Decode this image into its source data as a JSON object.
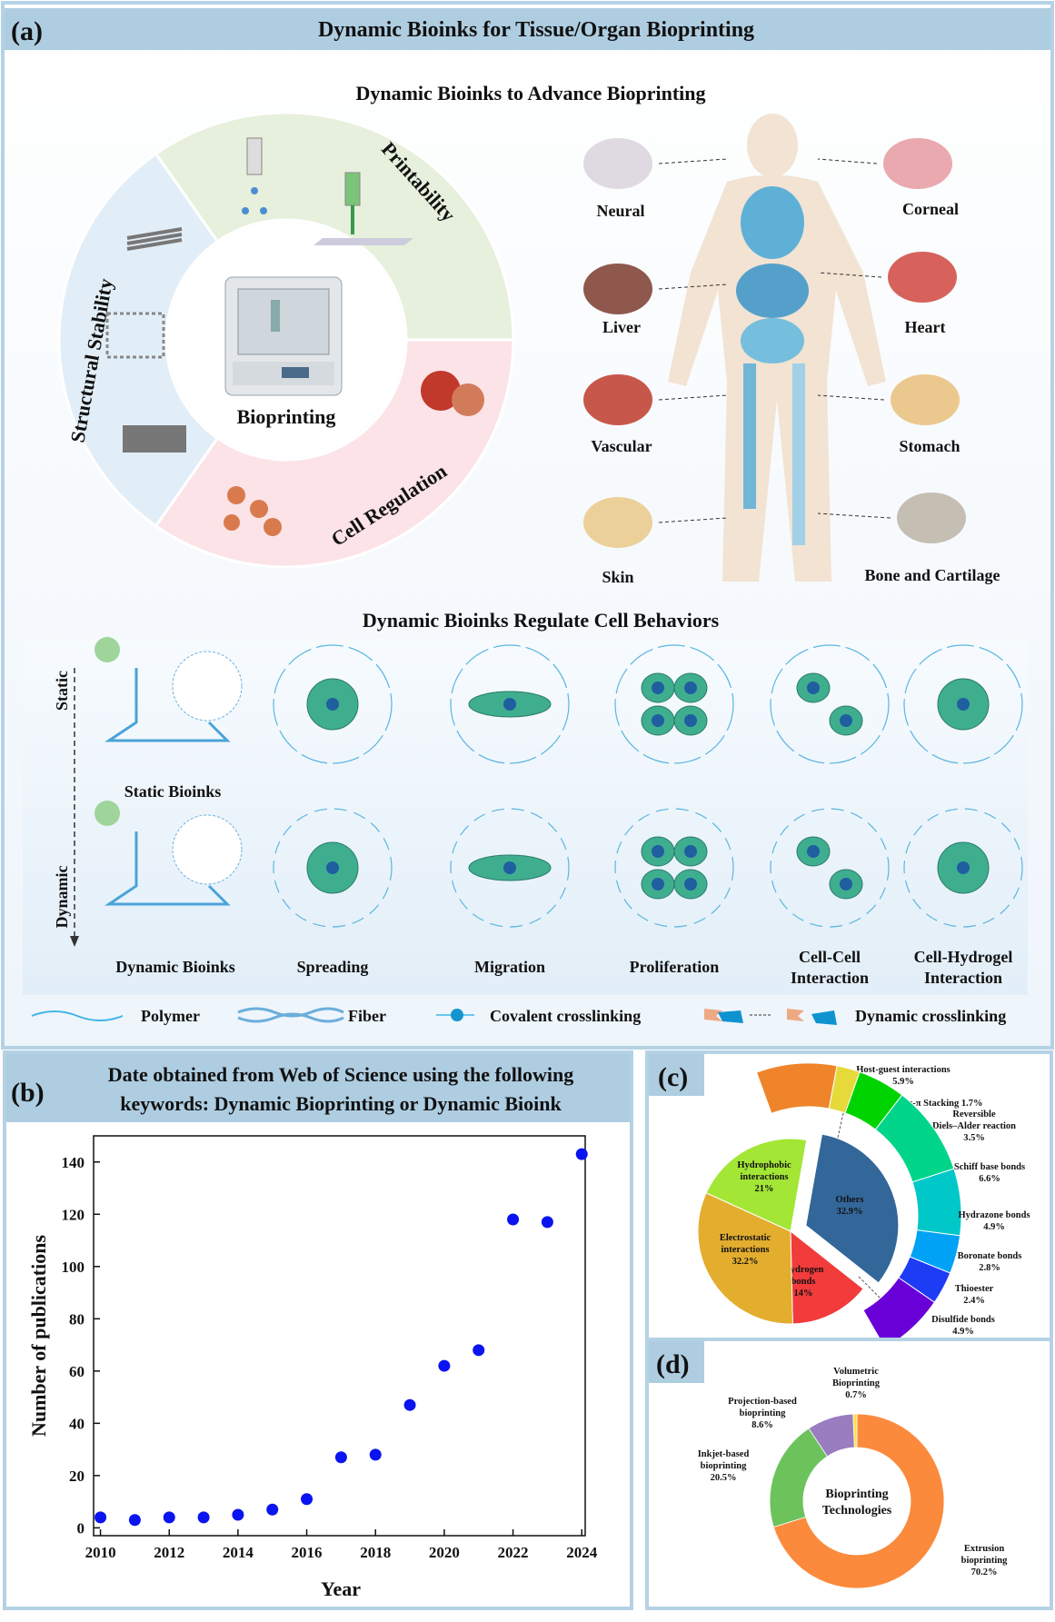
{
  "panel_a": {
    "label": "(a)",
    "title": "Dynamic Bioinks for Tissue/Organ Bioprinting",
    "subtitle_top": "Dynamic Bioinks to Advance Bioprinting",
    "wheel": {
      "center": "Bioprinting",
      "sectors": [
        "Printability",
        "Cell Regulation",
        "Structural Stability"
      ]
    },
    "organs": [
      "Neural",
      "Corneal",
      "Liver",
      "Heart",
      "Vascular",
      "Stomach",
      "Skin",
      "Bone and Cartilage"
    ],
    "subtitle_bottom": "Dynamic Bioinks Regulate Cell Behaviors",
    "axis": {
      "static": "Static",
      "dynamic": "Dynamic"
    },
    "columns": {
      "static_bioinks": "Static Bioinks",
      "dynamic_bioinks": "Dynamic Bioinks",
      "spreading": "Spreading",
      "migration": "Migration",
      "proliferation": "Proliferation",
      "cell_cell": [
        "Cell-Cell",
        "Interaction"
      ],
      "cell_hydrogel": [
        "Cell-Hydrogel",
        "Interaction"
      ]
    },
    "legend": {
      "polymer": "Polymer",
      "fiber": "Fiber",
      "covalent": "Covalent crosslinking",
      "dynamic": "Dynamic crosslinking"
    }
  },
  "panel_b": {
    "label": "(b)",
    "title_lines": [
      "Date obtained from Web of Science using the following",
      "keywords: Dynamic Bioprinting or Dynamic Bioink"
    ]
  },
  "panel_c": {
    "label": "(c)"
  },
  "panel_d": {
    "label": "(d)"
  },
  "chart_data": [
    {
      "type": "scatter",
      "xlabel": "Year",
      "ylabel": "Number of publications",
      "x": [
        2010,
        2011,
        2012,
        2013,
        2014,
        2015,
        2016,
        2017,
        2018,
        2019,
        2020,
        2021,
        2022,
        2023,
        2024
      ],
      "y": [
        4,
        3,
        4,
        4,
        5,
        7,
        11,
        27,
        28,
        47,
        62,
        68,
        118,
        117,
        143
      ],
      "xlim": [
        2009.8,
        2024.1
      ],
      "ylim": [
        -3,
        150
      ],
      "x_ticks": [
        "2010",
        "2012",
        "2014",
        "2016",
        "2018",
        "2020",
        "2022",
        "2024"
      ],
      "y_ticks": [
        "0",
        "20",
        "40",
        "60",
        "80",
        "100",
        "120",
        "140"
      ],
      "grid": false,
      "marker_color": "#0a14f0"
    },
    {
      "type": "pie",
      "slices": [
        {
          "name": "Others",
          "value": 32.9,
          "label": "32.9%",
          "color": "#336699",
          "exploded": true
        },
        {
          "name": "Hydrogen bonds",
          "label_lines": [
            "Hydrogen",
            "bonds"
          ],
          "value": 14,
          "label": "14%",
          "color": "#f23b3b"
        },
        {
          "name": "Electrostatic interactions",
          "label_lines": [
            "Electrostatic",
            "interactions"
          ],
          "value": 32.2,
          "label": "32.2%",
          "color": "#e3ad2e"
        },
        {
          "name": "Hydrophobic interactions",
          "label_lines": [
            "Hydrophobic",
            "interactions"
          ],
          "value": 21,
          "label": "21%",
          "color": "#a3e635"
        }
      ],
      "others_breakdown": [
        {
          "name": "Host-guest interactions",
          "value": 5.9,
          "label": "5.9%",
          "color": "#ef842b"
        },
        {
          "name": "π-π Stacking",
          "value": 1.7,
          "label": "1.7%",
          "color": "#e6da3a"
        },
        {
          "name": "Reversible Diels–Alder reaction",
          "value": 3.5,
          "label": "3.5%",
          "color": "#00d400"
        },
        {
          "name": "Schiff base bonds",
          "value": 6.6,
          "label": "6.6%",
          "color": "#00d58a"
        },
        {
          "name": "Hydrazone bonds",
          "value": 4.9,
          "label": "4.9%",
          "color": "#00c8c8"
        },
        {
          "name": "Boronate bonds",
          "value": 2.8,
          "label": "2.8%",
          "color": "#00a2f5"
        },
        {
          "name": "Thioester",
          "value": 2.4,
          "label": "2.4%",
          "color": "#1f3cf5"
        },
        {
          "name": "Disulfide bonds",
          "value": 4.9,
          "label": "4.9%",
          "color": "#6a00d8"
        }
      ]
    },
    {
      "type": "pie",
      "donut": true,
      "center_label": [
        "Bioprinting",
        "Technologies"
      ],
      "slices": [
        {
          "name": "Extrusion bioprinting",
          "label_lines": [
            "Extrusion",
            "bioprinting"
          ],
          "value": 70.2,
          "label": "70.2%",
          "color": "#fb8a3c"
        },
        {
          "name": "Inkjet-based bioprinting",
          "label_lines": [
            "Inkjet-based",
            "bioprinting"
          ],
          "value": 20.5,
          "label": "20.5%",
          "color": "#6cc35c"
        },
        {
          "name": "Projection-based bioprinting",
          "label_lines": [
            "Projection-based",
            "bioprinting"
          ],
          "value": 8.6,
          "label": "8.6%",
          "color": "#9a7cc0"
        },
        {
          "name": "Volumetric Bioprinting",
          "label_lines": [
            "Volumetric",
            "Bioprinting"
          ],
          "value": 0.7,
          "label": "0.7%",
          "color": "#ffe23a"
        }
      ]
    }
  ]
}
